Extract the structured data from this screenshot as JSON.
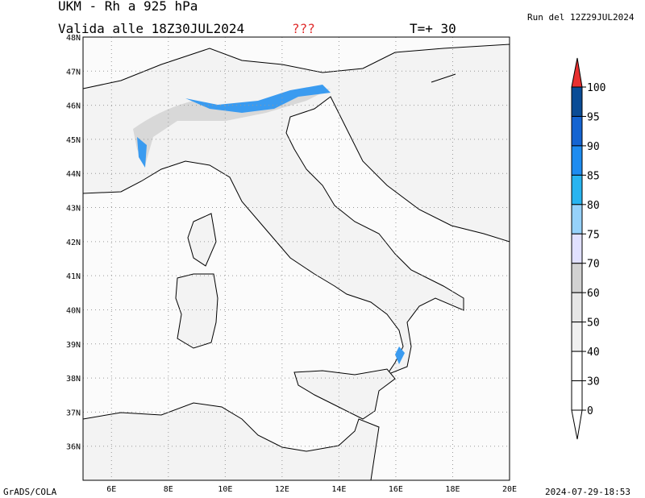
{
  "header": {
    "title": "UKM - Rh a 925 hPa",
    "valid": "Valida alle 18Z30JUL2024",
    "flag": "???",
    "step": "T=+ 30",
    "run": "Run del 12Z29JUL2024"
  },
  "map": {
    "lonlim": [
      5,
      20
    ],
    "latlim": [
      35,
      48
    ],
    "lonticks": [
      {
        "value": 6,
        "label": "6E"
      },
      {
        "value": 8,
        "label": "8E"
      },
      {
        "value": 10,
        "label": "10E"
      },
      {
        "value": 12,
        "label": "12E"
      },
      {
        "value": 14,
        "label": "14E"
      },
      {
        "value": 16,
        "label": "16E"
      },
      {
        "value": 18,
        "label": "18E"
      },
      {
        "value": 20,
        "label": "20E"
      }
    ],
    "latticks": [
      {
        "value": 36,
        "label": "36N"
      },
      {
        "value": 37,
        "label": "37N"
      },
      {
        "value": 38,
        "label": "38N"
      },
      {
        "value": 39,
        "label": "39N"
      },
      {
        "value": 40,
        "label": "40N"
      },
      {
        "value": 41,
        "label": "41N"
      },
      {
        "value": 42,
        "label": "42N"
      },
      {
        "value": 43,
        "label": "43N"
      },
      {
        "value": 44,
        "label": "44N"
      },
      {
        "value": 45,
        "label": "45N"
      },
      {
        "value": 46,
        "label": "46N"
      },
      {
        "value": 47,
        "label": "47N"
      },
      {
        "value": 48,
        "label": "48N"
      }
    ]
  },
  "colorbar": {
    "levels": [
      100,
      95,
      90,
      85,
      80,
      75,
      70,
      60,
      50,
      40,
      30,
      0
    ],
    "colors": [
      "#0a4c96",
      "#1464d2",
      "#1e8cf0",
      "#28b4f0",
      "#96d2fa",
      "#e1e1ff",
      "#d2d2d2",
      "#e6e6e6",
      "#f0f0f0",
      "#ffffff",
      "#ffffff"
    ]
  },
  "footer": {
    "left": "GrADS/COLA",
    "right": "2024-07-29-18:53"
  }
}
